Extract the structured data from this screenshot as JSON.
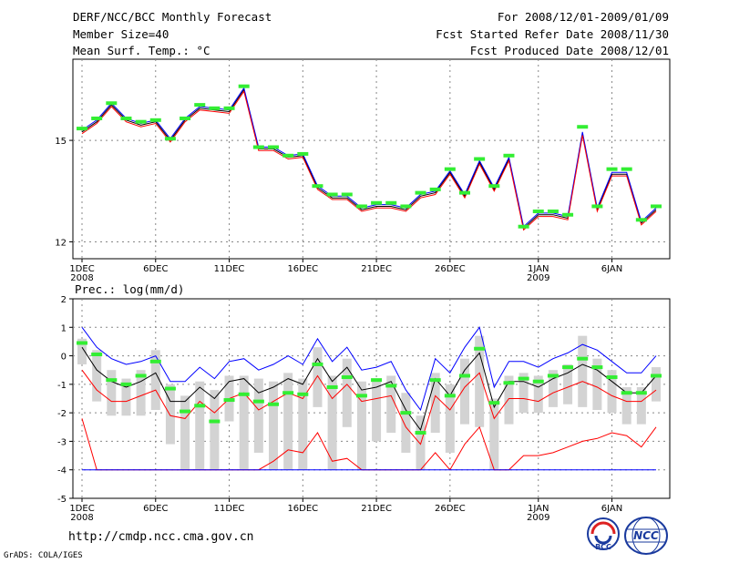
{
  "header": {
    "title": "DERF/NCC/BCC Monthly Forecast",
    "member_size": "Member Size=40",
    "variable": "Mean Surf. Temp.: °C",
    "period": "For 2008/12/01-2009/01/09",
    "fcst_started": "Fcst Started Refer Date 2008/11/30",
    "fcst_produced": "Fcst Produced Date 2008/12/01"
  },
  "footer": {
    "url": "http://cmdp.ncc.cma.gov.cn",
    "grads": "GrADS: COLA/IGES",
    "logo1": "BCC",
    "logo2": "NCC"
  },
  "colors": {
    "ensemble_mean": "#000000",
    "upper": "#0000ff",
    "lower": "#ff0000",
    "obs": "#33ee33",
    "box": "#d3d3d3"
  },
  "chart_data": [
    {
      "type": "line",
      "title": "Mean Surf. Temp.: °C",
      "xlabel": "",
      "ylabel": "",
      "x_tick_labels": [
        "1DEC",
        "6DEC",
        "11DEC",
        "16DEC",
        "21DEC",
        "26DEC",
        "1JAN",
        "6JAN"
      ],
      "x_tick_days": [
        1,
        6,
        11,
        16,
        21,
        26,
        32,
        37
      ],
      "x_tick_sublabels": [
        {
          "day": 1,
          "label": "2008"
        },
        {
          "day": 32,
          "label": "2009"
        }
      ],
      "y_ticks": [
        12,
        15
      ],
      "ylim": [
        11.5,
        17.4
      ],
      "days": [
        1,
        2,
        3,
        4,
        5,
        6,
        7,
        8,
        9,
        10,
        11,
        12,
        13,
        14,
        15,
        16,
        17,
        18,
        19,
        20,
        21,
        22,
        23,
        24,
        25,
        26,
        27,
        28,
        29,
        30,
        31,
        32,
        33,
        34,
        35,
        36,
        37,
        38,
        39,
        40
      ],
      "series": [
        {
          "name": "ensemble-mean",
          "values": [
            15.25,
            15.55,
            16.05,
            15.6,
            15.45,
            15.55,
            15.0,
            15.6,
            15.95,
            15.9,
            15.85,
            16.5,
            14.75,
            14.75,
            14.5,
            14.55,
            13.6,
            13.3,
            13.3,
            12.95,
            13.05,
            13.05,
            12.95,
            13.35,
            13.45,
            14.05,
            13.35,
            14.35,
            13.55,
            14.45,
            12.4,
            12.8,
            12.8,
            12.7,
            15.2,
            12.95,
            14.0,
            14.0,
            12.55,
            12.95
          ]
        },
        {
          "name": "upper-bound",
          "values": [
            15.3,
            15.6,
            16.1,
            15.65,
            15.5,
            15.6,
            15.05,
            15.65,
            16.0,
            15.95,
            15.9,
            16.55,
            14.8,
            14.8,
            14.55,
            14.6,
            13.65,
            13.35,
            13.35,
            13.0,
            13.1,
            13.1,
            13.0,
            13.4,
            13.5,
            14.1,
            13.4,
            14.4,
            13.6,
            14.5,
            12.45,
            12.85,
            12.85,
            12.75,
            15.25,
            13.0,
            14.05,
            14.05,
            12.6,
            13.0
          ]
        },
        {
          "name": "lower-bound",
          "values": [
            15.2,
            15.5,
            16.0,
            15.55,
            15.4,
            15.5,
            14.95,
            15.55,
            15.9,
            15.85,
            15.8,
            16.45,
            14.7,
            14.7,
            14.45,
            14.5,
            13.55,
            13.25,
            13.25,
            12.9,
            13.0,
            13.0,
            12.9,
            13.3,
            13.4,
            14.0,
            13.3,
            14.3,
            13.5,
            14.4,
            12.35,
            12.75,
            12.75,
            12.65,
            15.15,
            12.9,
            13.95,
            13.95,
            12.5,
            12.9
          ]
        },
        {
          "name": "observed",
          "values": [
            15.35,
            15.65,
            16.1,
            15.65,
            15.55,
            15.6,
            15.05,
            15.65,
            16.05,
            15.95,
            15.95,
            16.6,
            14.8,
            14.8,
            14.55,
            14.6,
            13.65,
            13.4,
            13.4,
            13.05,
            13.15,
            13.15,
            13.05,
            13.45,
            13.55,
            14.15,
            13.45,
            14.45,
            13.65,
            14.55,
            12.45,
            12.9,
            12.9,
            12.8,
            15.4,
            13.05,
            14.15,
            14.15,
            12.65,
            13.05
          ]
        }
      ]
    },
    {
      "type": "line",
      "title": "Prec.: log(mm/d)",
      "xlabel": "",
      "ylabel": "",
      "x_tick_labels": [
        "1DEC",
        "6DEC",
        "11DEC",
        "16DEC",
        "21DEC",
        "26DEC",
        "1JAN",
        "6JAN"
      ],
      "x_tick_days": [
        1,
        6,
        11,
        16,
        21,
        26,
        32,
        37
      ],
      "x_tick_sublabels": [
        {
          "day": 1,
          "label": "2008"
        },
        {
          "day": 32,
          "label": "2009"
        }
      ],
      "y_ticks": [
        -5,
        -4,
        -3,
        -2,
        -1,
        0,
        1,
        2
      ],
      "ylim": [
        -5,
        2
      ],
      "days": [
        1,
        2,
        3,
        4,
        5,
        6,
        7,
        8,
        9,
        10,
        11,
        12,
        13,
        14,
        15,
        16,
        17,
        18,
        19,
        20,
        21,
        22,
        23,
        24,
        25,
        26,
        27,
        28,
        29,
        30,
        31,
        32,
        33,
        34,
        35,
        36,
        37,
        38,
        39,
        40
      ],
      "series": [
        {
          "name": "ensemble-mean",
          "values": [
            0.3,
            -0.5,
            -0.9,
            -1.1,
            -0.9,
            -0.6,
            -1.6,
            -1.6,
            -1.1,
            -1.5,
            -0.9,
            -0.8,
            -1.3,
            -1.1,
            -0.8,
            -1.0,
            -0.1,
            -0.9,
            -0.4,
            -1.2,
            -1.1,
            -0.9,
            -1.9,
            -2.6,
            -0.8,
            -1.4,
            -0.5,
            0.1,
            -1.8,
            -0.9,
            -0.9,
            -1.1,
            -0.8,
            -0.6,
            -0.3,
            -0.5,
            -0.9,
            -1.3,
            -1.3,
            -0.7
          ]
        },
        {
          "name": "upper-bound",
          "values": [
            1.0,
            0.3,
            -0.1,
            -0.3,
            -0.2,
            0.0,
            -0.9,
            -0.9,
            -0.4,
            -0.8,
            -0.2,
            -0.1,
            -0.5,
            -0.3,
            0.0,
            -0.3,
            0.6,
            -0.2,
            0.3,
            -0.5,
            -0.4,
            -0.2,
            -1.2,
            -1.9,
            -0.1,
            -0.6,
            0.3,
            1.0,
            -1.1,
            -0.2,
            -0.2,
            -0.4,
            -0.1,
            0.1,
            0.4,
            0.2,
            -0.2,
            -0.6,
            -0.6,
            0.0
          ]
        },
        {
          "name": "lower-bound",
          "values": [
            -0.5,
            -1.2,
            -1.6,
            -1.6,
            -1.4,
            -1.2,
            -2.1,
            -2.2,
            -1.6,
            -2.0,
            -1.5,
            -1.3,
            -1.9,
            -1.6,
            -1.3,
            -1.5,
            -0.7,
            -1.5,
            -1.0,
            -1.6,
            -1.5,
            -1.4,
            -2.5,
            -3.1,
            -1.4,
            -1.9,
            -1.1,
            -0.6,
            -2.2,
            -1.5,
            -1.5,
            -1.6,
            -1.3,
            -1.1,
            -0.9,
            -1.1,
            -1.4,
            -1.6,
            -1.6,
            -1.2
          ]
        },
        {
          "name": "lower-extreme",
          "values": [
            -2.2,
            -4.0,
            -4.0,
            -4.0,
            -4.0,
            -4.0,
            -4.0,
            -4.0,
            -4.0,
            -4.0,
            -4.0,
            -4.0,
            -4.0,
            -3.7,
            -3.3,
            -3.4,
            -2.7,
            -3.7,
            -3.6,
            -4.0,
            -4.0,
            -4.0,
            -4.0,
            -4.0,
            -3.4,
            -4.0,
            -3.1,
            -2.5,
            -4.0,
            -4.0,
            -3.5,
            -3.5,
            -3.4,
            -3.2,
            -3.0,
            -2.9,
            -2.7,
            -2.8,
            -3.2,
            -2.5
          ]
        },
        {
          "name": "observed",
          "values": [
            0.45,
            0.05,
            -0.85,
            -1.0,
            -0.7,
            -0.2,
            -1.15,
            -1.95,
            -1.75,
            -2.3,
            -1.55,
            -1.35,
            -1.6,
            -1.7,
            -1.3,
            -1.35,
            -0.3,
            -1.1,
            -0.75,
            -1.4,
            -0.85,
            -1.05,
            -2.0,
            -2.7,
            -0.85,
            -1.4,
            -0.7,
            0.25,
            -1.65,
            -0.95,
            -0.8,
            -0.9,
            -0.7,
            -0.4,
            -0.1,
            -0.4,
            -0.75,
            -1.3,
            -1.3,
            -0.7
          ]
        }
      ],
      "box_range": {
        "low": [
          -0.3,
          -1.6,
          -2.1,
          -2.1,
          -2.1,
          -1.9,
          -3.1,
          -4.0,
          -4.0,
          -4.0,
          -2.3,
          -4.0,
          -3.4,
          -4.0,
          -4.0,
          -4.0,
          -1.8,
          -4.0,
          -2.5,
          -4.0,
          -3.0,
          -2.7,
          -3.4,
          -4.0,
          -2.7,
          -3.4,
          -2.4,
          -2.5,
          -4.0,
          -2.4,
          -2.0,
          -2.0,
          -1.8,
          -1.7,
          -1.8,
          -1.9,
          -2.0,
          -2.4,
          -2.4,
          -1.6
        ],
        "high": [
          0.6,
          0.2,
          -0.5,
          -0.8,
          -0.5,
          0.2,
          -1.0,
          -1.4,
          -0.9,
          -1.2,
          -0.7,
          -0.7,
          -0.8,
          -0.9,
          -0.6,
          -0.8,
          0.3,
          -0.7,
          -0.1,
          -0.9,
          -0.8,
          -0.7,
          -1.3,
          -2.1,
          -0.6,
          -1.0,
          -0.1,
          0.7,
          -1.5,
          -0.7,
          -0.6,
          -0.7,
          -0.5,
          -0.3,
          0.7,
          -0.1,
          -0.5,
          -1.1,
          -1.1,
          -0.4
        ]
      }
    }
  ]
}
